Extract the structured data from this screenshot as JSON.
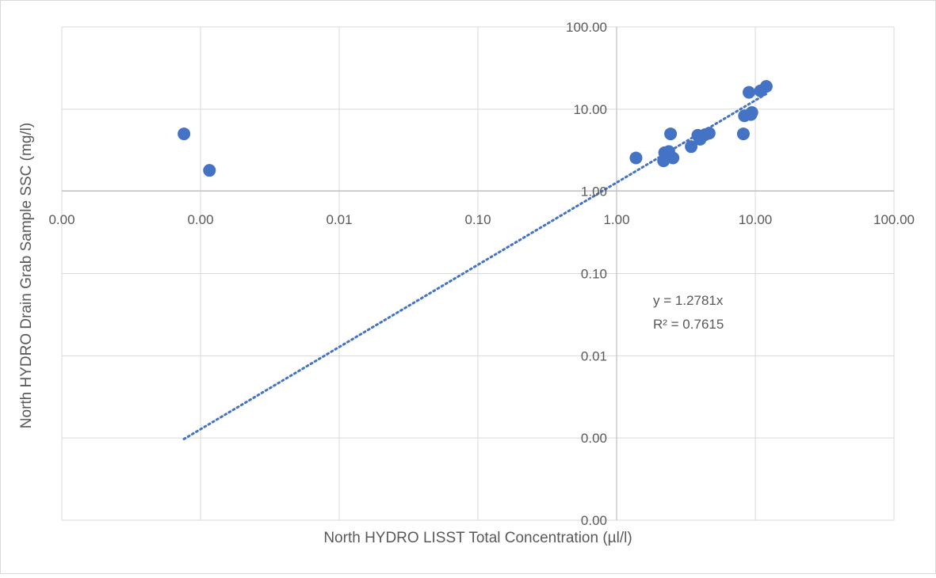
{
  "chart_data": {
    "type": "scatter",
    "title": "",
    "xlabel": "North HYDRO LISST Total Concentration (µl/l)",
    "ylabel": "North HYDRO Drain Grab Sample SSC (mg/l)",
    "x_scale": "log",
    "y_scale": "log",
    "xlim": [
      0.0001,
      100
    ],
    "ylim": [
      0.0001,
      100
    ],
    "x_tick_values": [
      0.0001,
      0.001,
      0.01,
      0.1,
      1,
      10,
      100
    ],
    "x_tick_labels": [
      "0.00",
      "0.00",
      "0.01",
      "0.10",
      "1.00",
      "10.00",
      "100.00"
    ],
    "y_tick_values": [
      0.0001,
      0.001,
      0.01,
      0.1,
      1,
      10,
      100
    ],
    "y_tick_labels": [
      "0.00",
      "0.00",
      "0.01",
      "0.10",
      "1.00",
      "10.00",
      "100.00"
    ],
    "grid": true,
    "legend": "none",
    "marker_color": "#4472C4",
    "trendline_color": "#4472C4",
    "series": [
      {
        "x": [
          0.00076,
          0.00116,
          1.38,
          2.18,
          2.22,
          2.3,
          2.38,
          2.45,
          2.55,
          3.45,
          3.85,
          4.0,
          4.1,
          4.35,
          4.65,
          8.2,
          8.35,
          9.0,
          9.3,
          9.45,
          10.9,
          12.0
        ],
        "y": [
          5.0,
          1.8,
          2.55,
          2.35,
          2.95,
          2.7,
          3.05,
          5.0,
          2.55,
          3.5,
          4.8,
          4.3,
          4.6,
          4.9,
          5.1,
          5.0,
          8.3,
          16.0,
          8.6,
          9.1,
          16.7,
          18.9
        ]
      }
    ],
    "trendline": {
      "type": "linear",
      "slope": 1.2781,
      "x_range": [
        0.00076,
        12.0
      ],
      "equation": "y = 1.2781x",
      "r_squared": "R² = 0.7615"
    }
  }
}
